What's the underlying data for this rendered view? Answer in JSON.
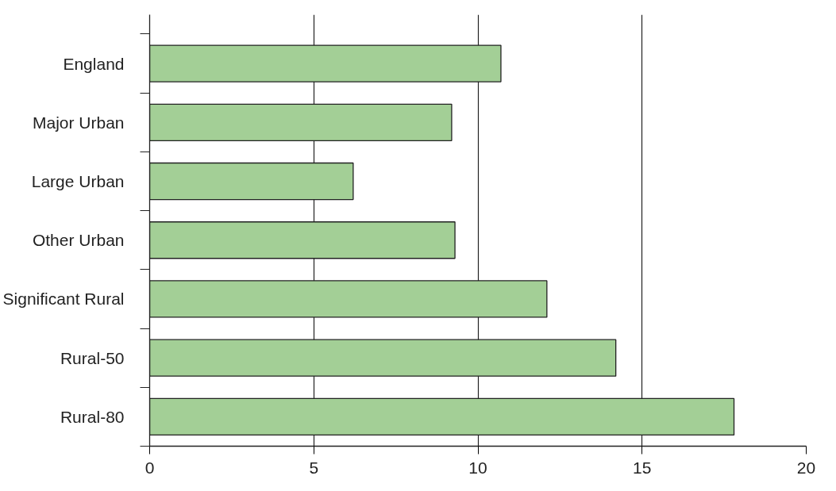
{
  "chart_data": {
    "type": "bar",
    "orientation": "horizontal",
    "categories": [
      "England",
      "Major Urban",
      "Large Urban",
      "Other Urban",
      "Significant Rural",
      "Rural-50",
      "Rural-80"
    ],
    "values": [
      10.7,
      9.2,
      6.2,
      9.3,
      12.1,
      14.2,
      17.8
    ],
    "color": "#a3cf96",
    "xlim": [
      0,
      20
    ],
    "xticks": [
      0,
      5,
      10,
      15,
      20
    ],
    "grid": "x"
  }
}
